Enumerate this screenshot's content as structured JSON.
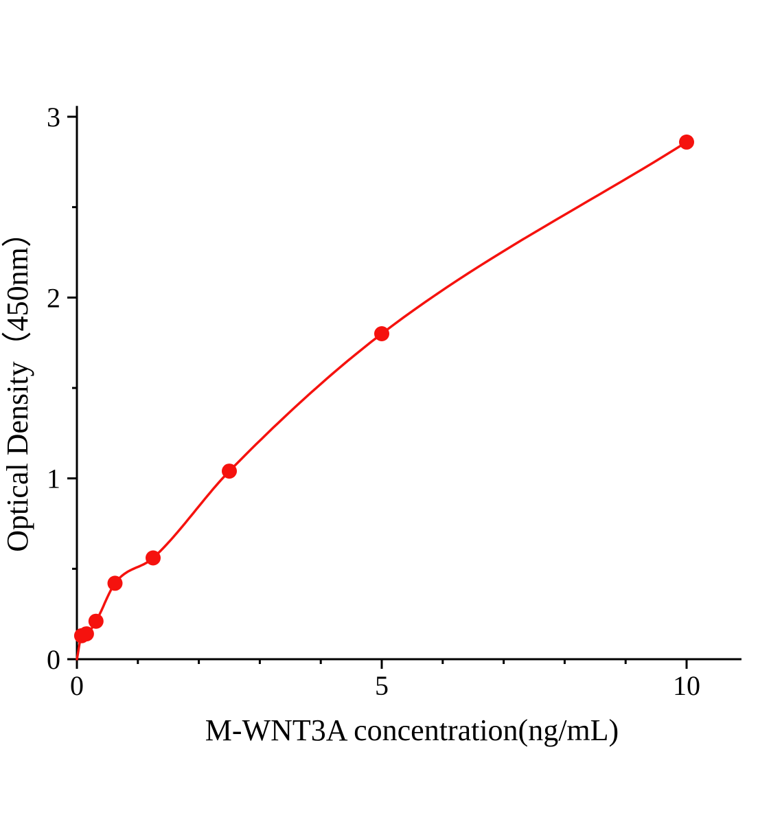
{
  "chart_data": {
    "type": "scatter",
    "title": "",
    "xlabel": "M-WNT3A concentration(ng/mL)",
    "ylabel": "Optical Density（450nm）",
    "x": [
      0.078,
      0.156,
      0.3125,
      0.625,
      1.25,
      2.5,
      5,
      10
    ],
    "y": [
      0.13,
      0.14,
      0.21,
      0.42,
      0.56,
      1.04,
      1.8,
      2.86
    ],
    "curve_start": {
      "x": 0,
      "y": 0
    },
    "xlim": [
      0,
      10.9
    ],
    "ylim": [
      0,
      3.06
    ],
    "xticks_major": [
      0,
      5,
      10
    ],
    "xticks_minor": [
      1,
      2,
      3,
      4,
      6,
      7,
      8,
      9
    ],
    "yticks_major": [
      0,
      1,
      2,
      3
    ],
    "yticks_minor": [
      0.5,
      1.5,
      2.5
    ],
    "grid": "off",
    "legend": "none",
    "marker_color": "#f5120e",
    "line_color": "#f5120e",
    "axis_color": "#000000",
    "background_color": "#ffffff"
  }
}
